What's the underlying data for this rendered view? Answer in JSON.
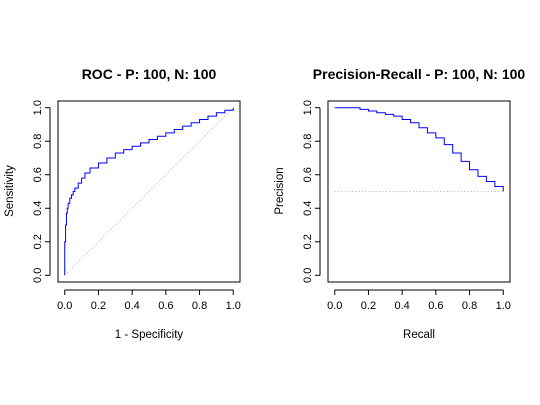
{
  "chart_data": [
    {
      "type": "line",
      "title": "ROC - P: 100, N: 100",
      "xlabel": "1 - Specificity",
      "ylabel": "Sensitivity",
      "xlim": [
        0,
        1
      ],
      "ylim": [
        0,
        1
      ],
      "xticks": [
        "0.0",
        "0.2",
        "0.4",
        "0.6",
        "0.8",
        "1.0"
      ],
      "yticks": [
        "0.0",
        "0.2",
        "0.4",
        "0.6",
        "0.8",
        "1.0"
      ],
      "grid": false,
      "curve_color": "#0000ff",
      "reference_color": "#bbbbbb",
      "reference_line": {
        "x": [
          0,
          1
        ],
        "y": [
          0,
          1
        ]
      },
      "series": [
        {
          "x": [
            0.0,
            0.0,
            0.005,
            0.005,
            0.01,
            0.01,
            0.015,
            0.02,
            0.03,
            0.04,
            0.05,
            0.06,
            0.08,
            0.1,
            0.12,
            0.15,
            0.2,
            0.25,
            0.3,
            0.35,
            0.4,
            0.45,
            0.5,
            0.55,
            0.6,
            0.65,
            0.7,
            0.75,
            0.8,
            0.85,
            0.9,
            0.95,
            1.0
          ],
          "y": [
            0.0,
            0.2,
            0.24,
            0.3,
            0.33,
            0.37,
            0.4,
            0.43,
            0.46,
            0.48,
            0.5,
            0.52,
            0.55,
            0.58,
            0.61,
            0.64,
            0.67,
            0.7,
            0.73,
            0.75,
            0.77,
            0.79,
            0.81,
            0.83,
            0.85,
            0.87,
            0.89,
            0.91,
            0.93,
            0.95,
            0.97,
            0.985,
            1.0
          ]
        }
      ]
    },
    {
      "type": "line",
      "title": "Precision-Recall - P: 100, N: 100",
      "xlabel": "Recall",
      "ylabel": "Precision",
      "xlim": [
        0,
        1
      ],
      "ylim": [
        0,
        1
      ],
      "xticks": [
        "0.0",
        "0.2",
        "0.4",
        "0.6",
        "0.8",
        "1.0"
      ],
      "yticks": [
        "0.0",
        "0.2",
        "0.4",
        "0.6",
        "0.8",
        "1.0"
      ],
      "grid": false,
      "curve_color": "#0000ff",
      "reference_color": "#bbbbbb",
      "reference_line": {
        "x": [
          0,
          1
        ],
        "y": [
          0.5,
          0.5
        ]
      },
      "series": [
        {
          "x": [
            0.0,
            0.05,
            0.1,
            0.15,
            0.2,
            0.25,
            0.3,
            0.35,
            0.4,
            0.45,
            0.5,
            0.55,
            0.6,
            0.65,
            0.7,
            0.75,
            0.8,
            0.85,
            0.9,
            0.95,
            1.0
          ],
          "y": [
            1.0,
            1.0,
            1.0,
            0.99,
            0.98,
            0.97,
            0.96,
            0.95,
            0.93,
            0.91,
            0.88,
            0.85,
            0.82,
            0.78,
            0.73,
            0.68,
            0.63,
            0.59,
            0.56,
            0.53,
            0.5
          ]
        }
      ]
    }
  ]
}
